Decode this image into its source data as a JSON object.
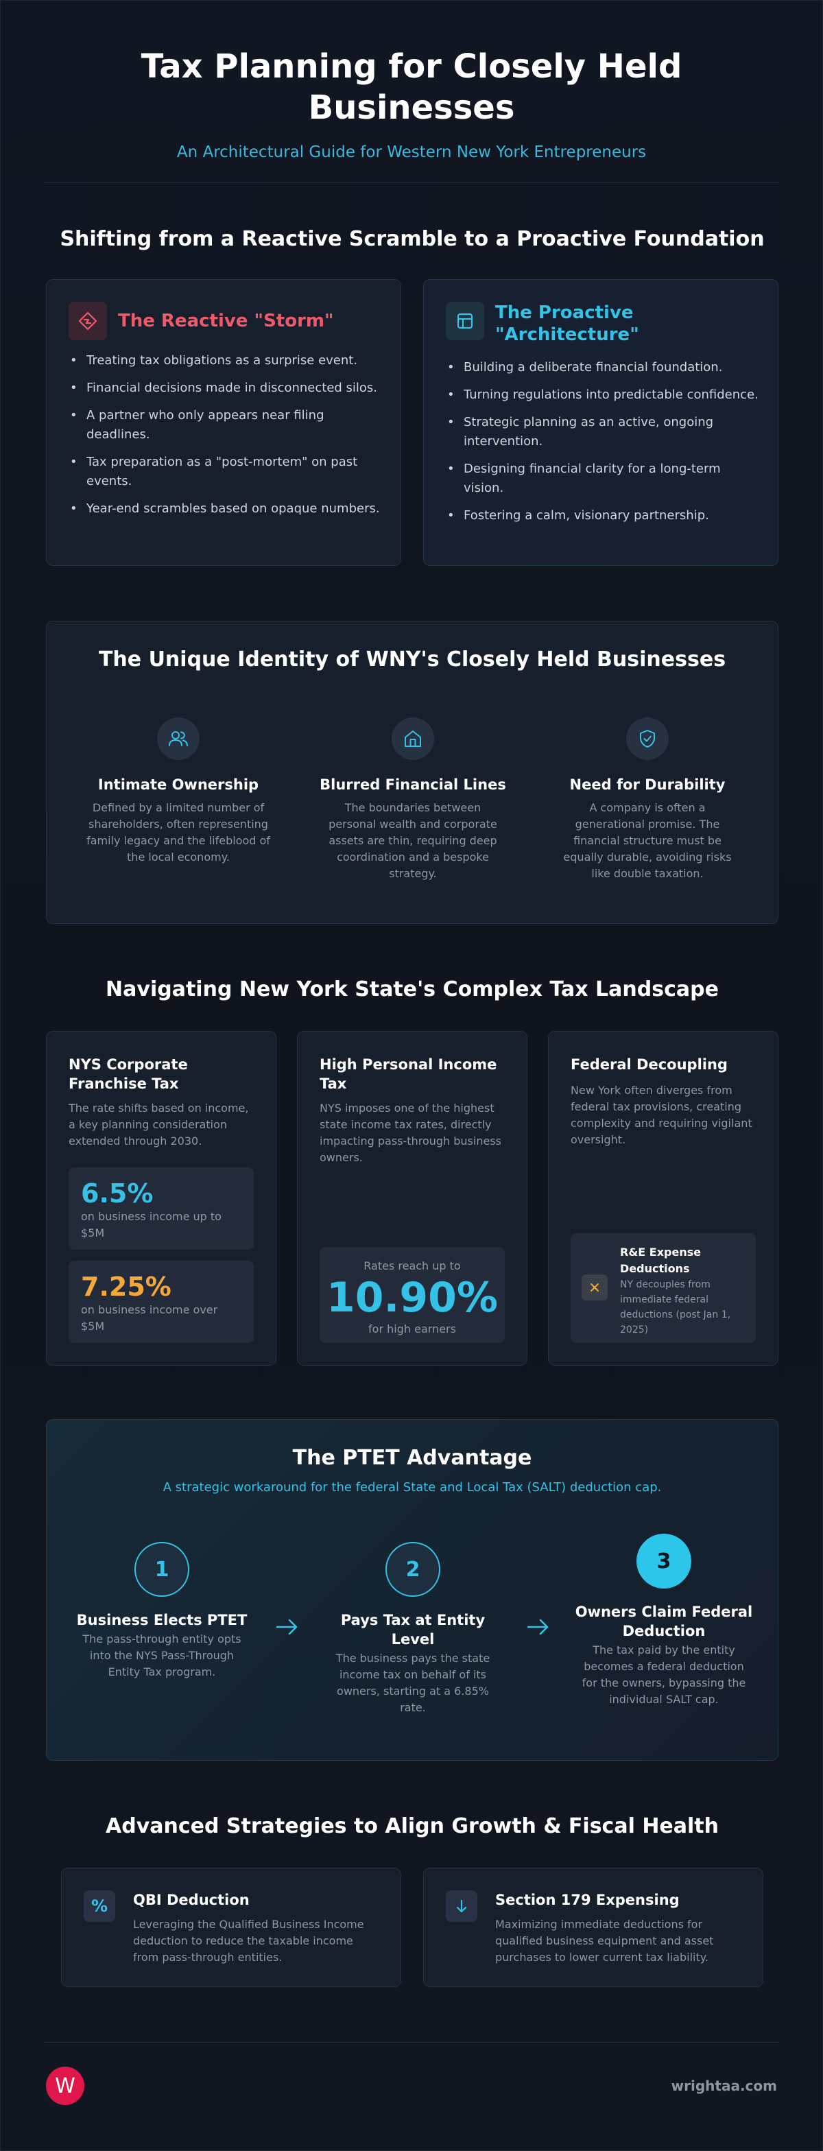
{
  "header": {
    "title": "Tax Planning for Closely Held Businesses",
    "subtitle": "An Architectural Guide for Western New York Entrepreneurs"
  },
  "shift": {
    "title": "Shifting from a Reactive Scramble to a Proactive Foundation",
    "reactive": {
      "icon": "storm-icon",
      "title": "The Reactive \"Storm\"",
      "items": [
        "Treating tax obligations as a surprise event.",
        "Financial decisions made in disconnected silos.",
        "A partner who only appears near filing deadlines.",
        "Tax preparation as a \"post-mortem\" on past events.",
        "Year-end scrambles based on opaque numbers."
      ]
    },
    "proactive": {
      "icon": "blueprint-icon",
      "title": "The Proactive \"Architecture\"",
      "items": [
        "Building a deliberate financial foundation.",
        "Turning regulations into predictable confidence.",
        "Strategic planning as an active, ongoing intervention.",
        "Designing financial clarity for a long-term vision.",
        "Fostering a calm, visionary partnership."
      ]
    }
  },
  "identity": {
    "title": "The Unique Identity of WNY's Closely Held Businesses",
    "items": [
      {
        "icon": "users-icon",
        "title": "Intimate Ownership",
        "desc": "Defined by a limited number of shareholders, often representing family legacy and the lifeblood of the local economy."
      },
      {
        "icon": "home-icon",
        "title": "Blurred Financial Lines",
        "desc": "The boundaries between personal wealth and corporate assets are thin, requiring deep coordination and a bespoke strategy."
      },
      {
        "icon": "shield-check-icon",
        "title": "Need for Durability",
        "desc": "A company is often a generational promise. The financial structure must be equally durable, avoiding risks like double taxation."
      }
    ]
  },
  "nys": {
    "title": "Navigating New York State's Complex Tax Landscape",
    "franchise": {
      "title": "NYS Corporate Franchise Tax",
      "desc": "The rate shifts based on income, a key planning consideration extended through 2030.",
      "rate1": "6.5%",
      "rate1_label": "on business income up to $5M",
      "rate2": "7.25%",
      "rate2_label": "on business income over $5M"
    },
    "personal": {
      "title": "High Personal Income Tax",
      "desc": "NYS imposes one of the highest state income tax rates, directly impacting pass-through business owners.",
      "pre": "Rates reach up to",
      "rate": "10.90%",
      "post": "for high earners"
    },
    "federal": {
      "title": "Federal Decoupling",
      "desc": "New York often diverges from federal tax provisions, creating complexity and requiring vigilant oversight.",
      "note_title": "R&E Expense Deductions",
      "note_desc": "NY decouples from immediate federal deductions (post Jan 1, 2025)",
      "note_icon": "x-icon"
    }
  },
  "ptet": {
    "title": "The PTET Advantage",
    "subtitle": "A strategic workaround for the federal State and Local Tax (SALT) deduction cap.",
    "steps": [
      {
        "num": "1",
        "title": "Business Elects PTET",
        "desc": "The pass-through entity opts into the NYS Pass-Through Entity Tax program."
      },
      {
        "num": "2",
        "title": "Pays Tax at Entity Level",
        "desc": "The business pays the state income tax on behalf of its owners, starting at a 6.85% rate."
      },
      {
        "num": "3",
        "title": "Owners Claim Federal Deduction",
        "desc": "The tax paid by the entity becomes a federal deduction for the owners, bypassing the individual SALT cap."
      }
    ]
  },
  "advanced": {
    "title": "Advanced Strategies to Align Growth & Fiscal Health",
    "items": [
      {
        "icon": "percent-icon",
        "title": "QBI Deduction",
        "desc": "Leveraging the Qualified Business Income deduction to reduce the taxable income from pass-through entities."
      },
      {
        "icon": "arrow-down-icon",
        "title": "Section 179 Expensing",
        "desc": "Maximizing immediate deductions for qualified business equipment and asset purchases to lower current tax liability."
      }
    ]
  },
  "footer": {
    "logo_letter": "W",
    "url": "wrightaa.com"
  },
  "colors": {
    "accent": "#34c2e6",
    "warning": "#ef5a6a",
    "highlight": "#f4a83a",
    "brand": "#e0174a"
  }
}
